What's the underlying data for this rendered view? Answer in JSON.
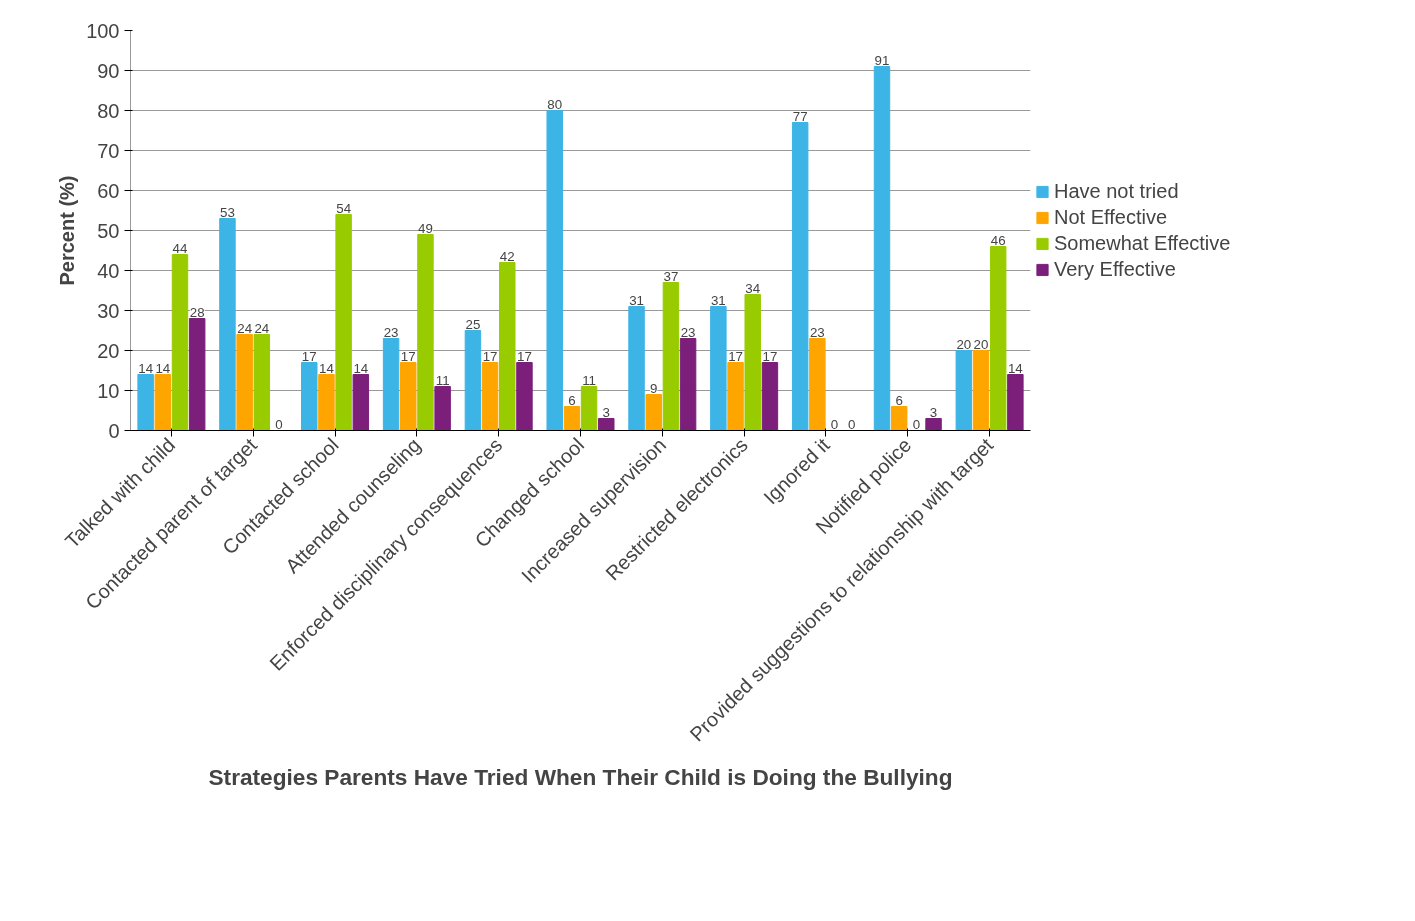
{
  "chart_data": {
    "type": "bar",
    "title": "Strategies Parents Have Tried When Their Child is Doing the Bullying",
    "ylabel": "Percent (%)",
    "categories": [
      "Talked with child",
      "Contacted parent of target",
      "Contacted school",
      "Attended counseling",
      "Enforced disciplinary consequences",
      "Changed school",
      "Increased supervision",
      "Restricted electronics",
      "Ignored it",
      "Notified police",
      "Provided suggestions to relationship with target"
    ],
    "series": [
      {
        "name": "Have not tried",
        "color": "#3cb4e6",
        "values": [
          14,
          53,
          17,
          23,
          25,
          80,
          31,
          31,
          77,
          91,
          20
        ]
      },
      {
        "name": "Not Effective",
        "color": "#ffa500",
        "values": [
          14,
          24,
          14,
          17,
          17,
          6,
          9,
          17,
          23,
          6,
          20
        ]
      },
      {
        "name": "Somewhat Effective",
        "color": "#99cc00",
        "values": [
          44,
          24,
          54,
          49,
          42,
          11,
          37,
          34,
          0,
          0,
          46
        ]
      },
      {
        "name": "Very Effective",
        "color": "#7b1f7b",
        "values": [
          28,
          0,
          14,
          11,
          17,
          3,
          23,
          17,
          0,
          3,
          14
        ]
      }
    ],
    "ylim": [
      0,
      100
    ],
    "yticks": [
      0,
      10,
      20,
      30,
      40,
      50,
      60,
      70,
      80,
      90,
      100
    ],
    "grid": "y",
    "legend": "right",
    "data_labels": true
  }
}
